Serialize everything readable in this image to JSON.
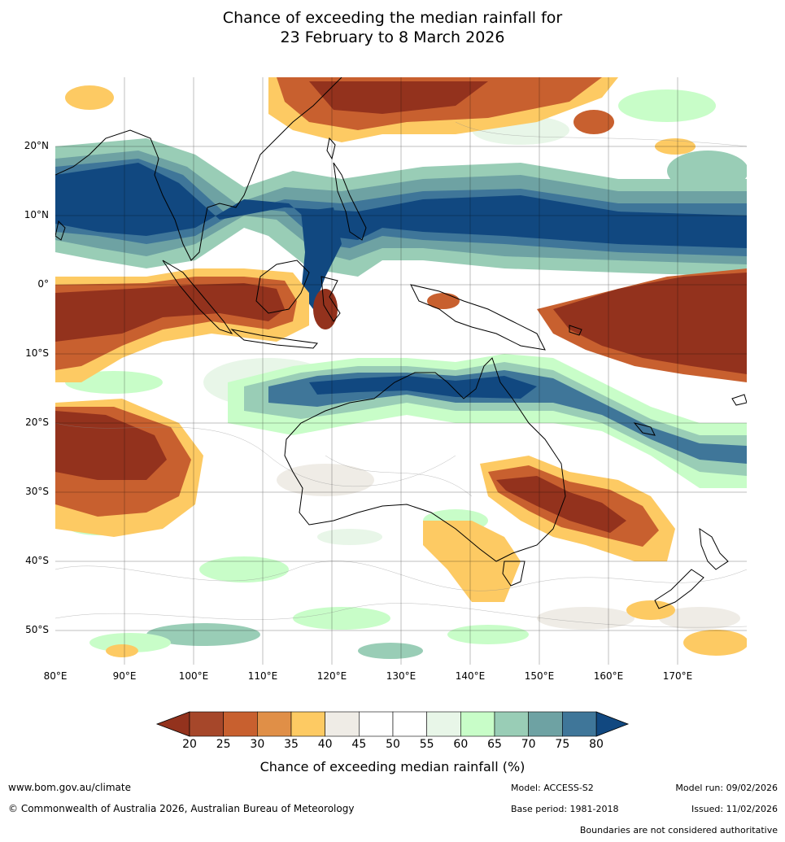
{
  "title_line1": "Chance of exceeding the median rainfall for",
  "title_line2": "23 February to 8 March 2026",
  "latitude_labels": [
    "20°N",
    "10°N",
    "0°",
    "10°S",
    "20°S",
    "30°S",
    "40°S",
    "50°S"
  ],
  "longitude_labels": [
    "80°E",
    "90°E",
    "100°E",
    "110°E",
    "120°E",
    "130°E",
    "140°E",
    "150°E",
    "160°E",
    "170°E"
  ],
  "map_extent": {
    "lon_min": 80,
    "lon_max": 180,
    "lat_min": -55,
    "lat_max": 30
  },
  "colorbar": {
    "ticks": [
      "20",
      "25",
      "30",
      "35",
      "40",
      "45",
      "50",
      "55",
      "60",
      "65",
      "70",
      "75",
      "80"
    ],
    "colors": [
      "#a6472a",
      "#c8602f",
      "#e08f47",
      "#fdca63",
      "#efece6",
      "#ffffff",
      "#ffffff",
      "#e8f6e8",
      "#c8fdc8",
      "#99cdb6",
      "#6ea2a3",
      "#3f7699"
    ],
    "under_color": "#93321d",
    "over_color": "#114880",
    "label": "Chance of exceeding median rainfall (%)"
  },
  "footer": {
    "website": "www.bom.gov.au/climate",
    "copyright": "© Commonwealth of Australia 2026, Australian Bureau of Meteorology",
    "model": "Model: ACCESS-S2",
    "base_period": "Base period: 1981-2018",
    "model_run": "Model run: 09/02/2026",
    "issued": "Issued: 11/02/2026",
    "disclaimer": "Boundaries are not considered authoritative"
  }
}
